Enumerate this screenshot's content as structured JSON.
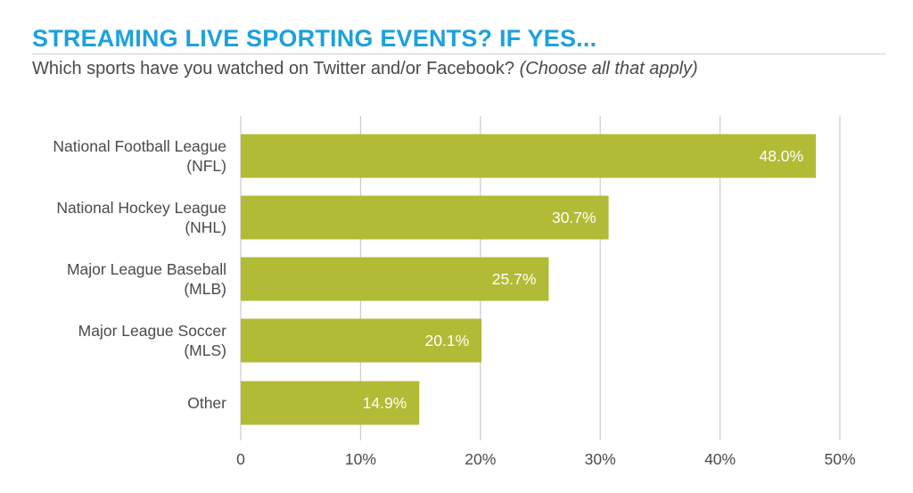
{
  "title": "STREAMING LIVE SPORTING EVENTS?  IF YES...",
  "subtitle": {
    "main": "Which sports have you watched on Twitter and/or Facebook?",
    "note": "(Choose all that apply)"
  },
  "colors": {
    "title": "#1da1dd",
    "bar": "#b2bb35",
    "grid": "#cccccc",
    "text": "#4a4a4a",
    "data_label": "#ffffff"
  },
  "chart_data": {
    "type": "bar",
    "orientation": "horizontal",
    "categories": [
      [
        "National Football League",
        "(NFL)"
      ],
      [
        "National Hockey League",
        "(NHL)"
      ],
      [
        "Major League Baseball",
        "(MLB)"
      ],
      [
        "Major League Soccer",
        "(MLS)"
      ],
      [
        "Other"
      ]
    ],
    "values": [
      48.0,
      30.7,
      25.7,
      20.1,
      14.9
    ],
    "data_labels": [
      "48.0%",
      "30.7%",
      "25.7%",
      "20.1%",
      "14.9%"
    ],
    "x_ticks": [
      0,
      10,
      20,
      30,
      40,
      50
    ],
    "x_tick_labels": [
      "0",
      "10%",
      "20%",
      "30%",
      "40%",
      "50%"
    ],
    "xlim": [
      0,
      50
    ],
    "grid": true,
    "legend": "none"
  }
}
